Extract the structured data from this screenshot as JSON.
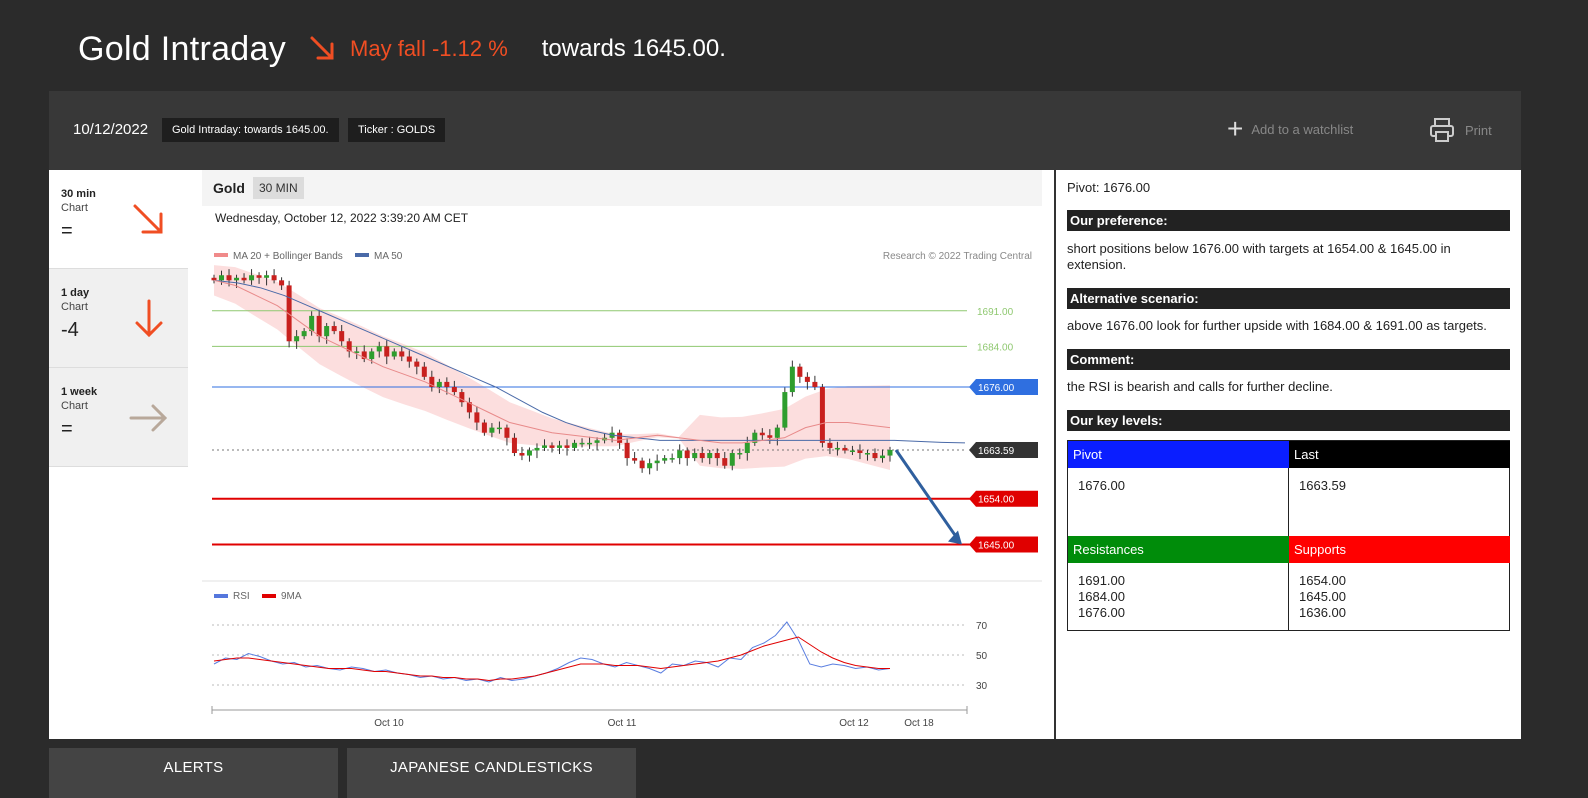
{
  "header": {
    "title": "Gold Intraday",
    "trend_text": "May fall -1.12 %",
    "towards_text": "towards 1645.00."
  },
  "topbar": {
    "date": "10/12/2022",
    "tag_summary": "Gold Intraday: towards 1645.00.",
    "tag_ticker": "Ticker : GOLDS",
    "watchlist_label": "Add to a watchlist",
    "print_label": "Print"
  },
  "sidebar": {
    "items": [
      {
        "period": "30 min",
        "chart": "Chart",
        "score": "=",
        "arrow_icon": "arrow-down-right-icon",
        "arrow_color": "#f04e23"
      },
      {
        "period": "1 day",
        "chart": "Chart",
        "score": "-4",
        "arrow_icon": "arrow-down-icon",
        "arrow_color": "#f04e23"
      },
      {
        "period": "1 week",
        "chart": "Chart",
        "score": "=",
        "arrow_icon": "arrow-right-icon",
        "arrow_color": "#b8a89a"
      }
    ]
  },
  "chart": {
    "symbol": "Gold",
    "timeframe": "30 MIN",
    "datetime": "Wednesday, October 12, 2022 3:39:20 AM CET",
    "legend_ma20": "MA 20 + Bollinger Bands",
    "legend_ma50": "MA 50",
    "credit": "Research © 2022 Trading Central",
    "rsi_legend": "RSI",
    "rsi_ma_legend": "9MA",
    "colors": {
      "bull": "#2e9e2e",
      "bear": "#c8201e",
      "ma50": "#4a6aa8",
      "boll": "#fbd8d8",
      "pivot": "#2f6fe0",
      "support": "#e00000",
      "resist": "#8fc870",
      "arrow": "#2f5f9e"
    }
  },
  "chart_data": {
    "type": "candlestick",
    "price_levels": [
      {
        "label": "1691.00",
        "value": 1691.0,
        "kind": "resistance"
      },
      {
        "label": "1684.00",
        "value": 1684.0,
        "kind": "resistance"
      },
      {
        "label": "1676.00",
        "value": 1676.0,
        "kind": "pivot"
      },
      {
        "label": "1663.59",
        "value": 1663.59,
        "kind": "last"
      },
      {
        "label": "1654.00",
        "value": 1654.0,
        "kind": "support"
      },
      {
        "label": "1645.00",
        "value": 1645.0,
        "kind": "support"
      }
    ],
    "x_ticks": [
      "Oct 10",
      "Oct 11",
      "Oct 12",
      "Oct 18"
    ],
    "rsi_ticks": [
      "70",
      "50",
      "30"
    ],
    "price_range": [
      1638,
      1701
    ],
    "rsi_range": [
      20,
      80
    ],
    "close_path": [
      1697,
      1698,
      1697,
      1697.5,
      1697,
      1698,
      1697.5,
      1698,
      1697,
      1696,
      1685,
      1686,
      1687,
      1690,
      1686,
      1688,
      1687,
      1685,
      1683,
      1683,
      1681.5,
      1683,
      1684,
      1682,
      1683,
      1682,
      1681,
      1680,
      1678,
      1676,
      1677,
      1676,
      1675,
      1673,
      1671,
      1669,
      1667,
      1668,
      1668,
      1666,
      1663,
      1662.5,
      1663.5,
      1664,
      1664.5,
      1664,
      1664.5,
      1664,
      1665,
      1665,
      1665,
      1665.5,
      1666,
      1667,
      1665,
      1662,
      1661.5,
      1660,
      1661,
      1661.5,
      1662,
      1662,
      1663.5,
      1662,
      1663,
      1662,
      1663,
      1662,
      1660.5,
      1663,
      1663,
      1665,
      1667,
      1666.5,
      1666,
      1668,
      1675,
      1680,
      1678,
      1677,
      1676,
      1665,
      1664,
      1664,
      1663.5,
      1663.5,
      1663,
      1663,
      1662,
      1662.5,
      1663.6
    ],
    "ma20_path": [
      1697,
      1696,
      1694,
      1692,
      1689,
      1686,
      1684,
      1682,
      1680,
      1678.5,
      1677,
      1675,
      1673,
      1671,
      1669,
      1668,
      1667,
      1666.5,
      1666,
      1665.5,
      1666,
      1666.5,
      1666,
      1665.5,
      1665,
      1665,
      1665.5,
      1666,
      1668,
      1669,
      1669,
      1668.5,
      1668
    ],
    "ma50_path": [
      1697,
      1696.5,
      1695.5,
      1694,
      1692,
      1690,
      1688,
      1686,
      1684,
      1682,
      1680,
      1678,
      1676,
      1673.5,
      1671,
      1669,
      1667.5,
      1666.5,
      1666,
      1665.5,
      1665.5,
      1665.5,
      1665.5,
      1665.5,
      1665.5,
      1665.5,
      1665.5,
      1665.5,
      1665.5,
      1665.5,
      1665.3,
      1665.1,
      1665
    ],
    "rsi_values": [
      44,
      48,
      47,
      51,
      49,
      46,
      44,
      45,
      42,
      43,
      41,
      40,
      42,
      41,
      39,
      40,
      38,
      37,
      35,
      36,
      34,
      35,
      33,
      34,
      32,
      35,
      33,
      34,
      36,
      38,
      41,
      45,
      48,
      47,
      44,
      42,
      45,
      43,
      41,
      38,
      44,
      43,
      46,
      45,
      42,
      48,
      47,
      55,
      58,
      63,
      72,
      60,
      44,
      42,
      44,
      43,
      41,
      42,
      40,
      41
    ],
    "rsi_ma_values": [
      46,
      47,
      48,
      48,
      47,
      46,
      45,
      44,
      43,
      42,
      41,
      41,
      41,
      40,
      39,
      39,
      38,
      37,
      36,
      36,
      35,
      35,
      34,
      34,
      33,
      34,
      34,
      35,
      36,
      38,
      40,
      42,
      44,
      44,
      44,
      43,
      43,
      43,
      42,
      41,
      42,
      43,
      44,
      45,
      46,
      48,
      50,
      53,
      56,
      58,
      60,
      62,
      57,
      52,
      48,
      45,
      43,
      42,
      41,
      41
    ]
  },
  "analysis": {
    "pivot": "Pivot: 1676.00",
    "preference_title": "Our preference:",
    "preference_text": "short positions below 1676.00 with targets at 1654.00 & 1645.00 in extension.",
    "alternative_title": "Alternative scenario:",
    "alternative_text": "above 1676.00 look for further upside with 1684.00 & 1691.00 as targets.",
    "comment_title": "Comment:",
    "comment_text": "the RSI is bearish and calls for further decline.",
    "key_levels_title": "Our key levels:",
    "levels": {
      "pivot_label": "Pivot",
      "pivot_value": "1676.00",
      "pivot_color": "#0a1eff",
      "last_label": "Last",
      "last_value": "1663.59",
      "last_color": "#000000",
      "resistances_label": "Resistances",
      "resistances_values": [
        "1691.00",
        "1684.00",
        "1676.00"
      ],
      "resistances_color": "#008c0a",
      "supports_label": "Supports",
      "supports_values": [
        "1654.00",
        "1645.00",
        "1636.00"
      ],
      "supports_color": "#ff0000"
    }
  },
  "bottom_tabs": [
    "ALERTS",
    "JAPANESE CANDLESTICKS"
  ]
}
